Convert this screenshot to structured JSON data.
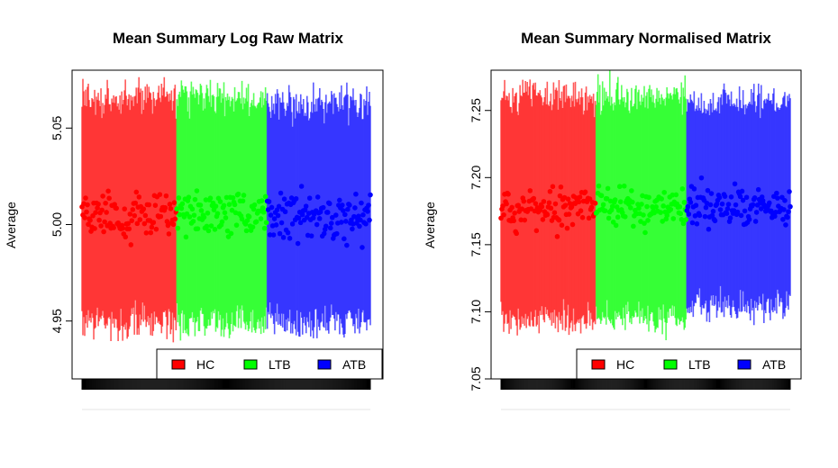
{
  "chart_data": [
    {
      "type": "scatter",
      "title": "Mean Summary Log Raw Matrix",
      "xlabel": "",
      "ylabel": "Average",
      "ylim": [
        4.92,
        5.08
      ],
      "y_ticks": [
        "4.95",
        "5.00",
        "5.05"
      ],
      "grid": false,
      "legend_position": "bottom-right",
      "error_bars": "range lines per sample behind mean points",
      "series": [
        {
          "name": "HC",
          "color": "#ff0000",
          "n_samples": 105,
          "mean_center": 5.005,
          "mean_spread": 0.006,
          "range_low": 4.95,
          "range_high": 5.065
        },
        {
          "name": "LTB",
          "color": "#00ff00",
          "n_samples": 100,
          "mean_center": 5.006,
          "mean_spread": 0.006,
          "range_low": 4.95,
          "range_high": 5.065
        },
        {
          "name": "ATB",
          "color": "#0000ff",
          "n_samples": 115,
          "mean_center": 5.004,
          "mean_spread": 0.006,
          "range_low": 4.95,
          "range_high": 5.062
        }
      ]
    },
    {
      "type": "scatter",
      "title": "Mean Summary Normalised Matrix",
      "xlabel": "",
      "ylabel": "Average",
      "ylim": [
        7.05,
        7.28
      ],
      "y_ticks": [
        "7.05",
        "7.10",
        "7.15",
        "7.20",
        "7.25"
      ],
      "grid": false,
      "legend_position": "bottom-right",
      "error_bars": "range lines per sample behind mean points",
      "series": [
        {
          "name": "HC",
          "color": "#ff0000",
          "n_samples": 105,
          "mean_center": 7.177,
          "mean_spread": 0.008,
          "range_low": 7.095,
          "range_high": 7.26
        },
        {
          "name": "LTB",
          "color": "#00ff00",
          "n_samples": 100,
          "mean_center": 7.178,
          "mean_spread": 0.007,
          "range_low": 7.095,
          "range_high": 7.26
        },
        {
          "name": "ATB",
          "color": "#0000ff",
          "n_samples": 115,
          "mean_center": 7.179,
          "mean_spread": 0.007,
          "range_low": 7.105,
          "range_high": 7.255
        }
      ]
    }
  ]
}
